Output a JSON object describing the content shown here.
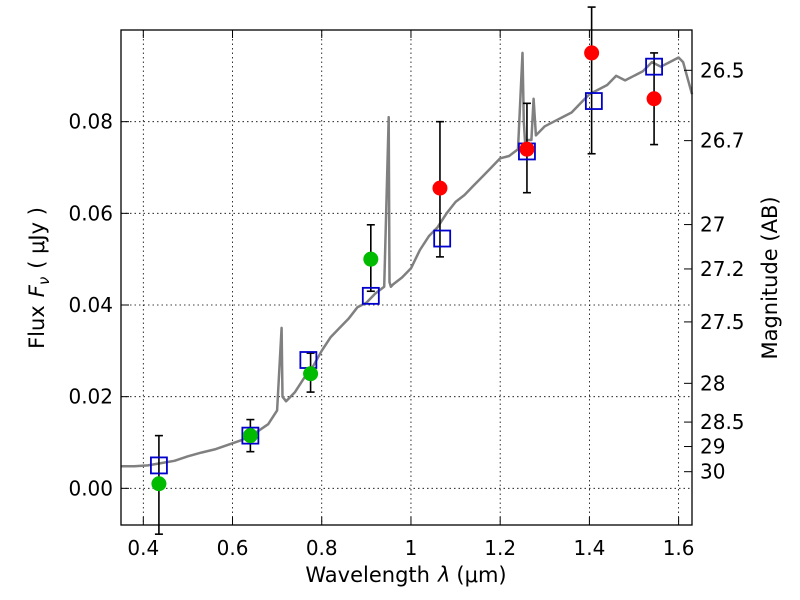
{
  "chart_data": {
    "type": "scatter",
    "xlabel": "Wavelength",
    "xlabel_symbol": "λ",
    "xlabel_unit": "(μm)",
    "ylabel": "Flux",
    "ylabel_symbol": "F",
    "ylabel_subscript": "ν",
    "ylabel_unit": "( μJy )",
    "y2label": "Magnitude (AB)",
    "xlim": [
      0.35,
      1.63
    ],
    "ylim": [
      -0.008,
      0.1
    ],
    "grid": true,
    "x_ticks": [
      0.4,
      0.6,
      0.8,
      1.0,
      1.2,
      1.4,
      1.6
    ],
    "x_tick_labels": [
      "0.4",
      "0.6",
      "0.8",
      "1",
      "1.2",
      "1.4",
      "1.6"
    ],
    "y_ticks": [
      0.0,
      0.02,
      0.04,
      0.06,
      0.08
    ],
    "y_tick_labels": [
      "0.00",
      "0.02",
      "0.04",
      "0.06",
      "0.08"
    ],
    "mag_ticks": [
      26.5,
      26.7,
      27,
      27.2,
      27.5,
      28,
      28.5,
      29,
      30
    ],
    "mag_tick_labels": [
      "26.5",
      "26.7",
      "27",
      "27.2",
      "27.5",
      "28",
      "28.5",
      "29",
      "30"
    ],
    "colors": {
      "model": "#808080",
      "model_photometry": "#0000cc",
      "green_points": "#00bb00",
      "red_points": "#ff0000",
      "errorbar": "#000000"
    },
    "model_spectrum": {
      "x": [
        0.35,
        0.38,
        0.41,
        0.44,
        0.47,
        0.5,
        0.53,
        0.56,
        0.59,
        0.62,
        0.65,
        0.68,
        0.7,
        0.71,
        0.712,
        0.72,
        0.74,
        0.76,
        0.78,
        0.8,
        0.82,
        0.84,
        0.86,
        0.88,
        0.9,
        0.92,
        0.94,
        0.95,
        0.952,
        0.955,
        0.96,
        0.98,
        1.0,
        1.02,
        1.04,
        1.06,
        1.08,
        1.1,
        1.12,
        1.14,
        1.16,
        1.18,
        1.2,
        1.22,
        1.24,
        1.25,
        1.253,
        1.256,
        1.26,
        1.27,
        1.275,
        1.28,
        1.3,
        1.32,
        1.34,
        1.36,
        1.38,
        1.4,
        1.42,
        1.44,
        1.46,
        1.48,
        1.5,
        1.52,
        1.54,
        1.56,
        1.58,
        1.6,
        1.61,
        1.63
      ],
      "y": [
        0.0048,
        0.0048,
        0.005,
        0.0055,
        0.006,
        0.007,
        0.0078,
        0.0085,
        0.0095,
        0.0105,
        0.012,
        0.014,
        0.017,
        0.035,
        0.02,
        0.019,
        0.021,
        0.024,
        0.0265,
        0.03,
        0.033,
        0.035,
        0.037,
        0.0395,
        0.0405,
        0.0425,
        0.044,
        0.081,
        0.045,
        0.044,
        0.0445,
        0.046,
        0.048,
        0.052,
        0.055,
        0.057,
        0.06,
        0.0625,
        0.064,
        0.066,
        0.068,
        0.07,
        0.072,
        0.0725,
        0.074,
        0.095,
        0.08,
        0.075,
        0.076,
        0.076,
        0.085,
        0.077,
        0.079,
        0.08,
        0.081,
        0.082,
        0.084,
        0.086,
        0.087,
        0.088,
        0.09,
        0.089,
        0.09,
        0.091,
        0.093,
        0.092,
        0.093,
        0.094,
        0.093,
        0.086
      ]
    },
    "model_photometry": {
      "x": [
        0.435,
        0.64,
        0.77,
        0.91,
        1.07,
        1.26,
        1.41,
        1.545
      ],
      "y": [
        0.005,
        0.0115,
        0.028,
        0.042,
        0.0545,
        0.0735,
        0.0845,
        0.092
      ]
    },
    "observed_green": {
      "x": [
        0.435,
        0.64,
        0.775,
        0.91
      ],
      "y": [
        0.001,
        0.0115,
        0.025,
        0.05
      ],
      "err_low": [
        0.011,
        0.0035,
        0.004,
        0.007
      ],
      "err_high": [
        0.0105,
        0.0035,
        0.0045,
        0.0075
      ]
    },
    "observed_red": {
      "x": [
        1.065,
        1.26,
        1.405,
        1.545
      ],
      "y": [
        0.0655,
        0.074,
        0.095,
        0.085
      ],
      "err_low": [
        0.015,
        0.0095,
        0.022,
        0.01
      ],
      "err_high": [
        0.0145,
        0.01,
        0.01,
        0.01
      ]
    }
  }
}
